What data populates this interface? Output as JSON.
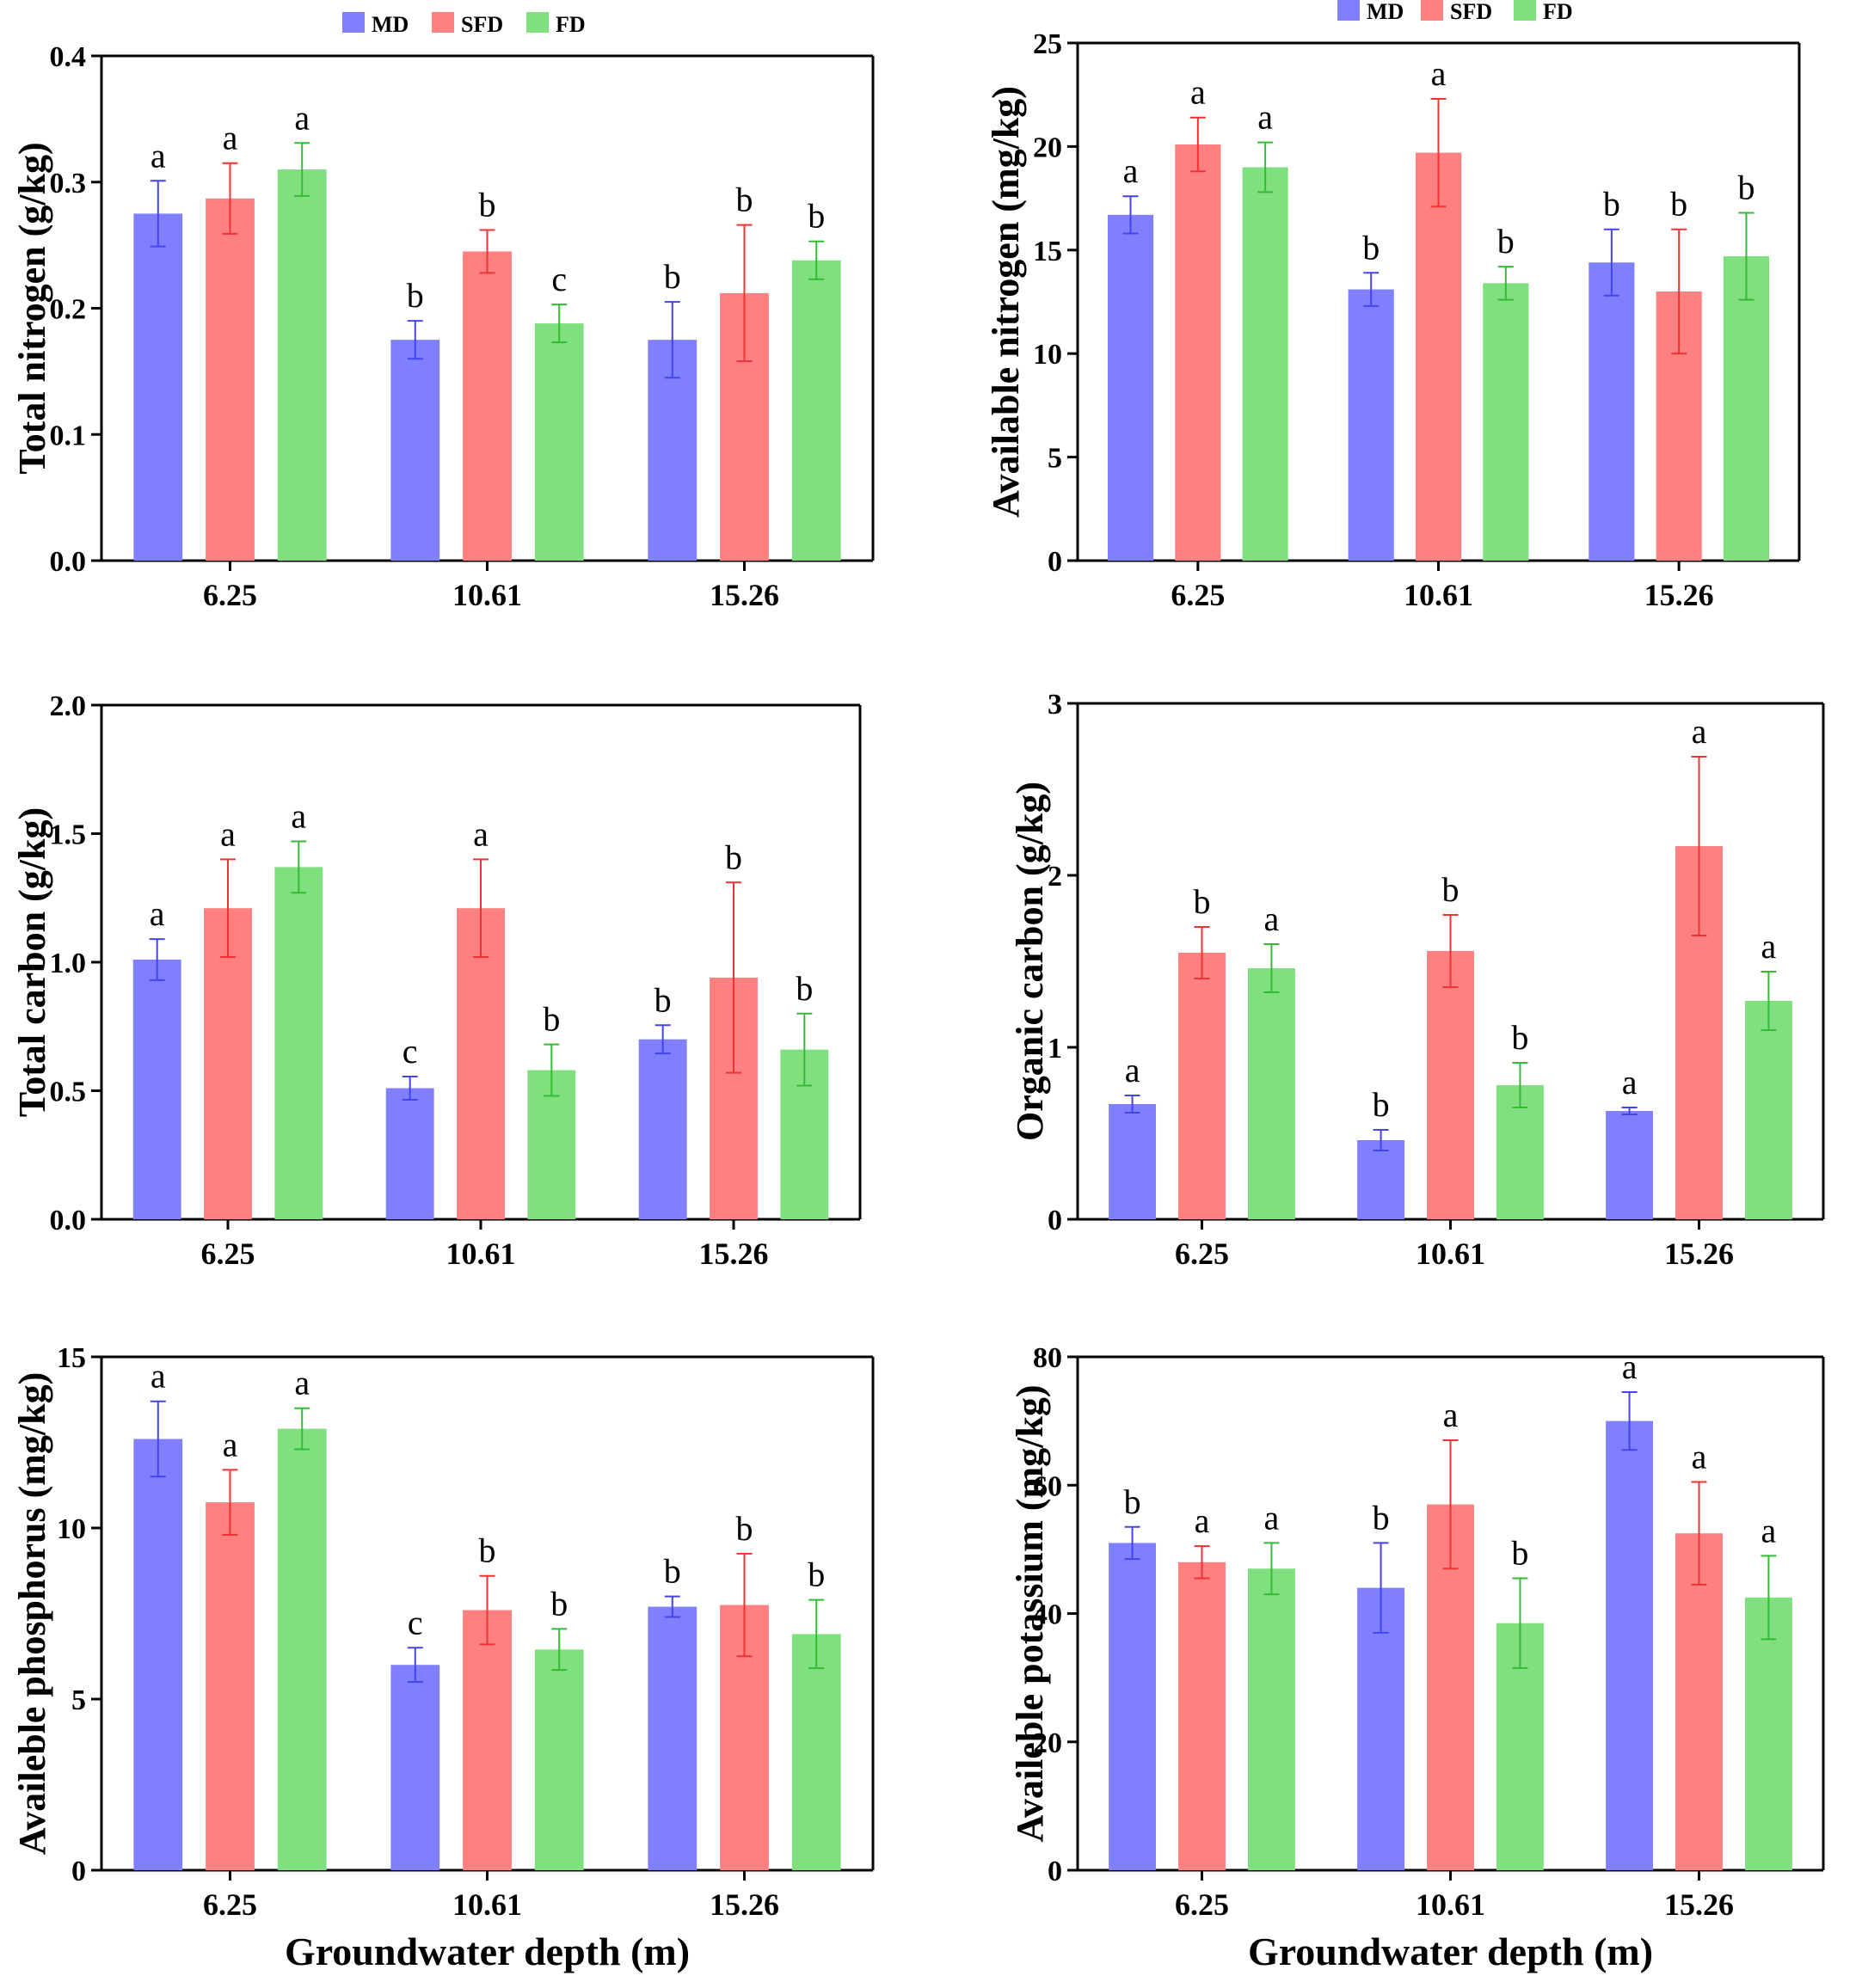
{
  "chart_data": [
    {
      "type": "bar",
      "categories": [
        "6.25",
        "10.61",
        "15.26"
      ],
      "series": [
        {
          "name": "MD",
          "values": [
            0.275,
            0.175,
            0.175
          ],
          "errors": [
            0.026,
            0.015,
            0.03
          ],
          "letters": [
            "a",
            "b",
            "b"
          ]
        },
        {
          "name": "SFD",
          "values": [
            0.287,
            0.245,
            0.212
          ],
          "errors": [
            0.028,
            0.017,
            0.054
          ],
          "letters": [
            "a",
            "b",
            "b"
          ]
        },
        {
          "name": "FD",
          "values": [
            0.31,
            0.188,
            0.238
          ],
          "errors": [
            0.021,
            0.015,
            0.015
          ],
          "letters": [
            "a",
            "c",
            "b"
          ]
        }
      ],
      "ylabel": "Total nitrogen (g/kg)",
      "xlabel": "",
      "ylim": [
        0,
        0.4
      ],
      "yticks": [
        0.0,
        0.1,
        0.2,
        0.3,
        0.4
      ],
      "ytick_labels": [
        "0.0",
        "0.1",
        "0.2",
        "0.3",
        "0.4"
      ]
    },
    {
      "type": "bar",
      "categories": [
        "6.25",
        "10.61",
        "15.26"
      ],
      "series": [
        {
          "name": "MD",
          "values": [
            16.7,
            13.1,
            14.4
          ],
          "errors": [
            0.9,
            0.8,
            1.6
          ],
          "letters": [
            "a",
            "b",
            "b"
          ]
        },
        {
          "name": "SFD",
          "values": [
            20.1,
            19.7,
            13.0
          ],
          "errors": [
            1.3,
            2.6,
            3.0
          ],
          "letters": [
            "a",
            "a",
            "b"
          ]
        },
        {
          "name": "FD",
          "values": [
            19.0,
            13.4,
            14.7
          ],
          "errors": [
            1.2,
            0.8,
            2.1
          ],
          "letters": [
            "a",
            "b",
            "b"
          ]
        }
      ],
      "ylabel": "Available nitrogen (mg/kg)",
      "xlabel": "",
      "ylim": [
        0,
        25
      ],
      "yticks": [
        0,
        5,
        10,
        15,
        20,
        25
      ],
      "ytick_labels": [
        "0",
        "5",
        "10",
        "15",
        "20",
        "25"
      ]
    },
    {
      "type": "bar",
      "categories": [
        "6.25",
        "10.61",
        "15.26"
      ],
      "series": [
        {
          "name": "MD",
          "values": [
            1.01,
            0.51,
            0.7
          ],
          "errors": [
            0.08,
            0.045,
            0.055
          ],
          "letters": [
            "a",
            "c",
            "b"
          ]
        },
        {
          "name": "SFD",
          "values": [
            1.21,
            1.21,
            0.94
          ],
          "errors": [
            0.19,
            0.19,
            0.37
          ],
          "letters": [
            "a",
            "a",
            "b"
          ]
        },
        {
          "name": "FD",
          "values": [
            1.37,
            0.58,
            0.66
          ],
          "errors": [
            0.1,
            0.1,
            0.14
          ],
          "letters": [
            "a",
            "b",
            "b"
          ]
        }
      ],
      "ylabel": "Total carbon (g/kg)",
      "xlabel": "",
      "ylim": [
        0,
        2.0
      ],
      "yticks": [
        0.0,
        0.5,
        1.0,
        1.5,
        2.0
      ],
      "ytick_labels": [
        "0.0",
        "0.5",
        "1.0",
        "1.5",
        "2.0"
      ]
    },
    {
      "type": "bar",
      "categories": [
        "6.25",
        "10.61",
        "15.26"
      ],
      "series": [
        {
          "name": "MD",
          "values": [
            0.67,
            0.46,
            0.63
          ],
          "errors": [
            0.05,
            0.06,
            0.02
          ],
          "letters": [
            "a",
            "b",
            "a"
          ]
        },
        {
          "name": "SFD",
          "values": [
            1.55,
            1.56,
            2.17
          ],
          "errors": [
            0.15,
            0.21,
            0.52
          ],
          "letters": [
            "b",
            "b",
            "a"
          ]
        },
        {
          "name": "FD",
          "values": [
            1.46,
            0.78,
            1.27
          ],
          "errors": [
            0.14,
            0.13,
            0.17
          ],
          "letters": [
            "a",
            "b",
            "a"
          ]
        }
      ],
      "ylabel": "Organic carbon (g/kg)",
      "xlabel": "",
      "ylim": [
        0,
        3
      ],
      "yticks": [
        0,
        1,
        2,
        3
      ],
      "ytick_labels": [
        "0",
        "1",
        "2",
        "3"
      ]
    },
    {
      "type": "bar",
      "categories": [
        "6.25",
        "10.61",
        "15.26"
      ],
      "series": [
        {
          "name": "MD",
          "values": [
            12.6,
            6.0,
            7.7
          ],
          "errors": [
            1.1,
            0.5,
            0.3
          ],
          "letters": [
            "a",
            "c",
            "b"
          ]
        },
        {
          "name": "SFD",
          "values": [
            10.75,
            7.6,
            7.75
          ],
          "errors": [
            0.95,
            1.0,
            1.5
          ],
          "letters": [
            "a",
            "b",
            "b"
          ]
        },
        {
          "name": "FD",
          "values": [
            12.9,
            6.45,
            6.9
          ],
          "errors": [
            0.6,
            0.6,
            1.0
          ],
          "letters": [
            "a",
            "b",
            "b"
          ]
        }
      ],
      "ylabel": "Availeble phosphorus (mg/kg)",
      "xlabel": "Groundwater depth (m)",
      "ylim": [
        0,
        15
      ],
      "yticks": [
        0,
        5,
        10,
        15
      ],
      "ytick_labels": [
        "0",
        "5",
        "10",
        "15"
      ]
    },
    {
      "type": "bar",
      "categories": [
        "6.25",
        "10.61",
        "15.26"
      ],
      "series": [
        {
          "name": "MD",
          "values": [
            51,
            44,
            70
          ],
          "errors": [
            2.5,
            7,
            4.5
          ],
          "letters": [
            "b",
            "b",
            "a"
          ]
        },
        {
          "name": "SFD",
          "values": [
            48,
            57,
            52.5
          ],
          "errors": [
            2.5,
            10,
            8
          ],
          "letters": [
            "a",
            "a",
            "a"
          ]
        },
        {
          "name": "FD",
          "values": [
            47,
            38.5,
            42.5
          ],
          "errors": [
            4,
            7,
            6.5
          ],
          "letters": [
            "a",
            "b",
            "a"
          ]
        }
      ],
      "ylabel": "Availeble potassium (mg/kg)",
      "xlabel": "Groundwater depth (m)",
      "ylim": [
        0,
        80
      ],
      "yticks": [
        0,
        20,
        40,
        60,
        80
      ],
      "ytick_labels": [
        "0",
        "20",
        "40",
        "60",
        "80"
      ]
    }
  ],
  "legends": [
    {
      "entries": [
        "MD",
        "SFD",
        "FD"
      ]
    },
    {
      "entries": [
        "MD",
        "SFD",
        "FD"
      ]
    }
  ],
  "colors": {
    "MD": "#8080ff",
    "SFD": "#ff8080",
    "FD": "#80e080",
    "MD_error": "#4444ee",
    "SFD_error": "#ee3333",
    "FD_error": "#33bb33"
  }
}
